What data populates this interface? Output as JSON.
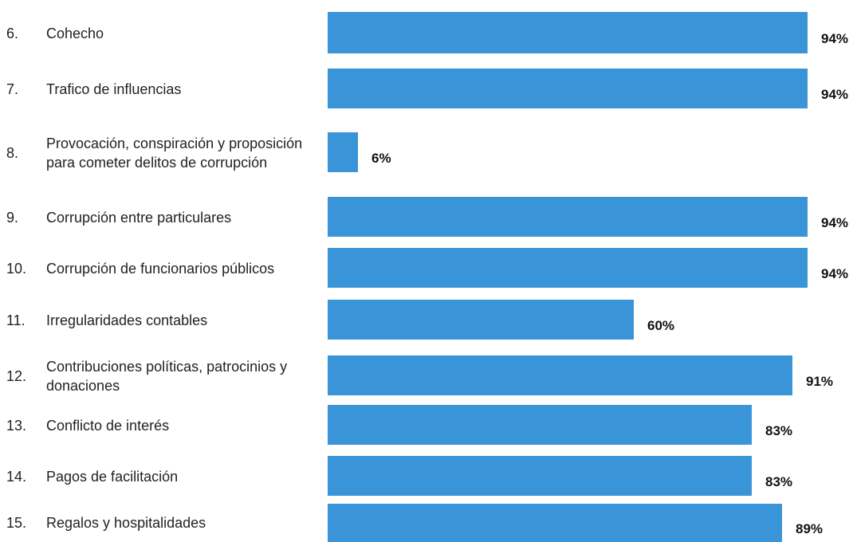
{
  "chart_data": {
    "type": "bar",
    "orientation": "horizontal",
    "title": "",
    "xlabel": "",
    "ylabel": "",
    "xlim": [
      0,
      100
    ],
    "grid": false,
    "bar_color": "#3a95d8",
    "categories": [
      {
        "num": "6.",
        "label": "Cohecho"
      },
      {
        "num": "7.",
        "label": "Trafico de influencias"
      },
      {
        "num": "8.",
        "label": "Provocación, conspiración y proposición para cometer delitos de corrupción"
      },
      {
        "num": "9.",
        "label": "Corrupción entre particulares"
      },
      {
        "num": "10.",
        "label": "Corrupción de funcionarios públicos"
      },
      {
        "num": "11.",
        "label": "Irregularidades contables"
      },
      {
        "num": "12.",
        "label": "Contribuciones políticas, patrocinios y donaciones"
      },
      {
        "num": "13.",
        "label": "Conflicto de interés"
      },
      {
        "num": "14.",
        "label": "Pagos de facilitación"
      },
      {
        "num": "15.",
        "label": "Regalos y hospitalidades"
      }
    ],
    "values": [
      94,
      94,
      6,
      94,
      94,
      60,
      91,
      83,
      83,
      89
    ],
    "value_labels": [
      "94%",
      "94%",
      "6%",
      "94%",
      "94%",
      "60%",
      "91%",
      "83%",
      "83%",
      "89%"
    ]
  }
}
